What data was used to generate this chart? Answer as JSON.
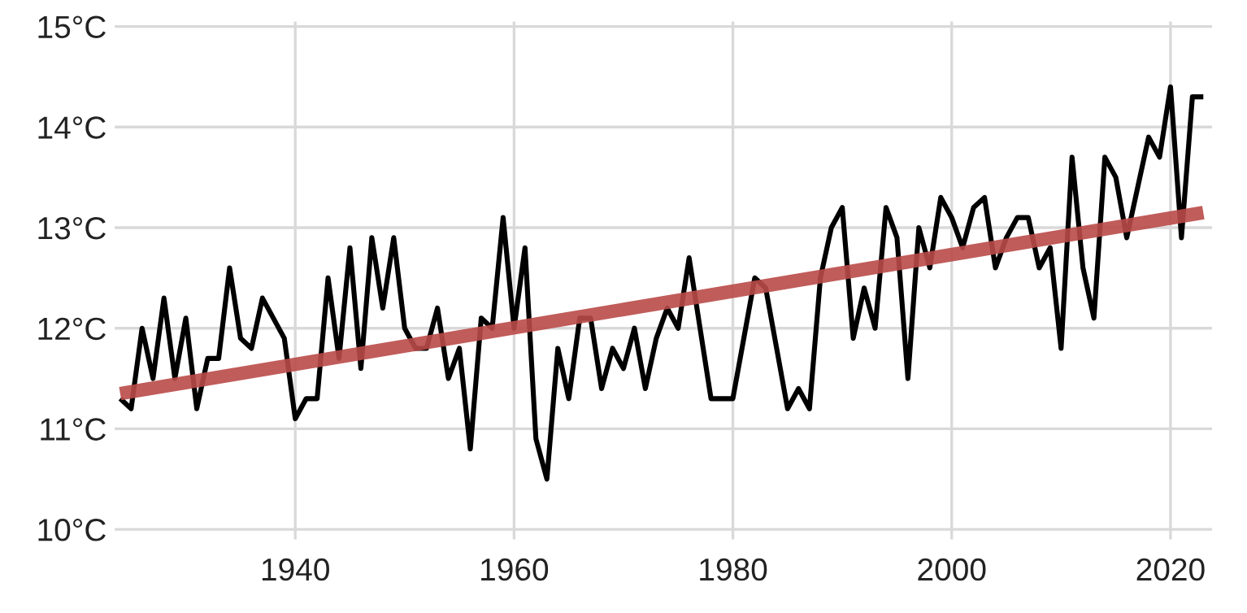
{
  "chart_data": {
    "type": "line",
    "x": [
      1924,
      1925,
      1926,
      1927,
      1928,
      1929,
      1930,
      1931,
      1932,
      1933,
      1934,
      1935,
      1936,
      1937,
      1938,
      1939,
      1940,
      1941,
      1942,
      1943,
      1944,
      1945,
      1946,
      1947,
      1948,
      1949,
      1950,
      1951,
      1952,
      1953,
      1954,
      1955,
      1956,
      1957,
      1958,
      1959,
      1960,
      1961,
      1962,
      1963,
      1964,
      1965,
      1966,
      1967,
      1968,
      1969,
      1970,
      1971,
      1972,
      1973,
      1974,
      1975,
      1976,
      1977,
      1978,
      1979,
      1980,
      1981,
      1982,
      1983,
      1984,
      1985,
      1986,
      1987,
      1988,
      1989,
      1990,
      1991,
      1992,
      1993,
      1994,
      1995,
      1996,
      1997,
      1998,
      1999,
      2000,
      2001,
      2002,
      2003,
      2004,
      2005,
      2006,
      2007,
      2008,
      2009,
      2010,
      2011,
      2012,
      2013,
      2014,
      2015,
      2016,
      2017,
      2018,
      2019,
      2020,
      2021,
      2022,
      2023
    ],
    "series": [
      {
        "color": "#000000",
        "values": [
          11.3,
          11.2,
          12.0,
          11.5,
          12.3,
          11.5,
          12.1,
          11.2,
          11.7,
          11.7,
          12.6,
          11.9,
          11.8,
          12.3,
          12.1,
          11.9,
          11.1,
          11.3,
          11.3,
          12.5,
          11.7,
          12.8,
          11.6,
          12.9,
          12.2,
          12.9,
          12.0,
          11.8,
          11.8,
          12.2,
          11.5,
          11.8,
          10.8,
          12.1,
          12.0,
          13.1,
          12.0,
          12.8,
          10.9,
          10.5,
          11.8,
          11.3,
          12.1,
          12.1,
          11.4,
          11.8,
          11.6,
          12.0,
          11.4,
          11.9,
          12.2,
          12.0,
          12.7,
          12.0,
          11.3,
          11.3,
          11.3,
          11.9,
          12.5,
          12.4,
          11.8,
          11.2,
          11.4,
          11.2,
          12.5,
          13.0,
          13.2,
          11.9,
          12.4,
          12.0,
          13.2,
          12.9,
          11.5,
          13.0,
          12.6,
          13.3,
          13.1,
          12.8,
          13.2,
          13.3,
          12.6,
          12.9,
          13.1,
          13.1,
          12.6,
          12.8,
          11.8,
          13.7,
          12.6,
          12.1,
          13.7,
          13.5,
          12.9,
          13.4,
          13.9,
          13.7,
          14.4,
          12.9,
          14.3,
          14.3
        ]
      },
      {
        "type": "line",
        "color": "#b94a48",
        "x": [
          1924,
          2023
        ],
        "values": [
          11.35,
          13.15
        ]
      }
    ],
    "xlim": [
      1923.5,
      2023.8
    ],
    "xticks": [
      1940,
      1960,
      1980,
      2000,
      2020
    ],
    "ylim": [
      9.9,
      15.05
    ],
    "yticks": [
      {
        "value": 10,
        "label": "10°C"
      },
      {
        "value": 11,
        "label": "11°C"
      },
      {
        "value": 12,
        "label": "12°C"
      },
      {
        "value": 13,
        "label": "13°C"
      },
      {
        "value": 14,
        "label": "14°C"
      },
      {
        "value": 15,
        "label": "15°C"
      }
    ],
    "grid": true,
    "marker": "none",
    "line_style": "solid"
  }
}
